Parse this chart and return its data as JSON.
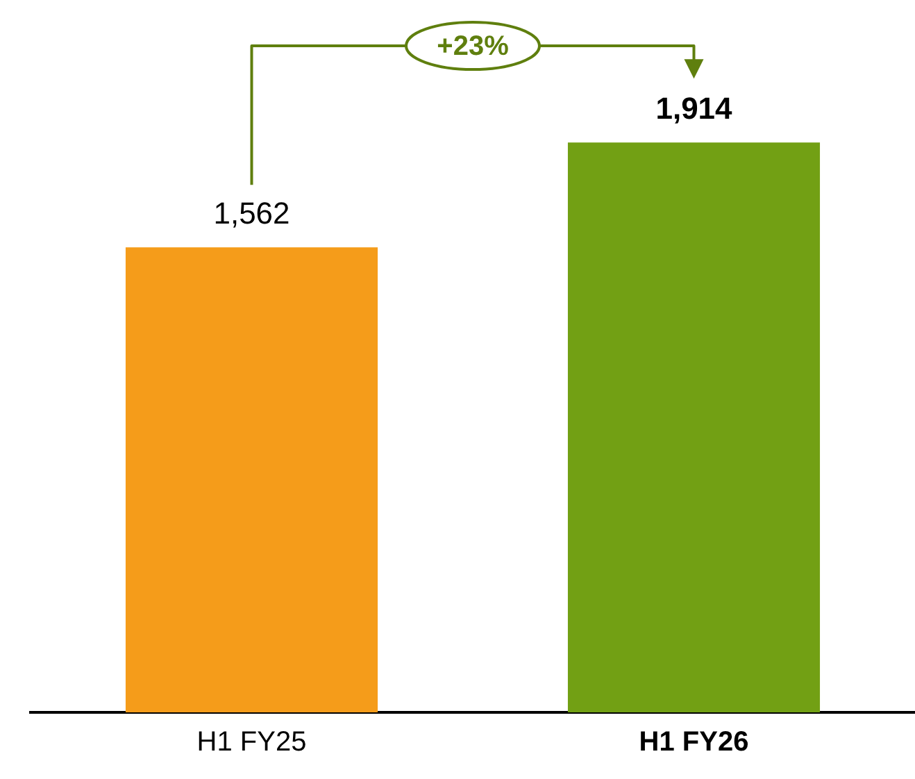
{
  "chart_data": {
    "type": "bar",
    "categories": [
      "H1 FY25",
      "H1 FY26"
    ],
    "values": [
      1562,
      1914
    ],
    "colors": [
      "#f59c1a",
      "#72a014"
    ],
    "value_labels": [
      "1,562",
      "1,914"
    ],
    "annotations": [
      "+23%"
    ],
    "grid": false,
    "legend": false
  }
}
